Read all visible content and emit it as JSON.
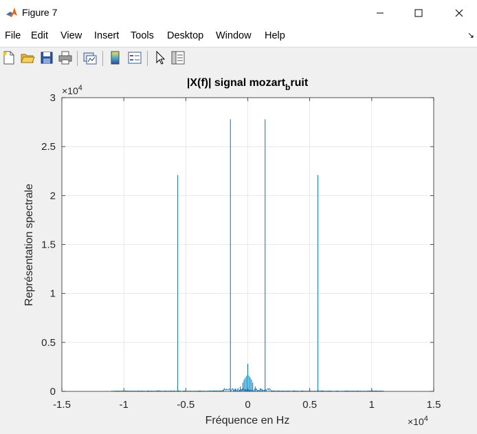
{
  "window": {
    "title": "Figure 7",
    "controls": {
      "minimize": "minimize",
      "maximize": "maximize",
      "close": "close"
    }
  },
  "menu": {
    "items": [
      "File",
      "Edit",
      "View",
      "Insert",
      "Tools",
      "Desktop",
      "Window",
      "Help"
    ]
  },
  "toolbar": {
    "icons": [
      "new-figure-icon",
      "open-file-icon",
      "save-icon",
      "print-icon",
      "link-plot-icon",
      "colorbar-icon",
      "legend-icon",
      "pointer-icon",
      "property-inspector-icon"
    ]
  },
  "chart_data": {
    "type": "line",
    "title_main": "|X(f)| signal mozart",
    "title_sub": "b",
    "title_tail": "ruit",
    "xlabel": "Fréquence en Hz",
    "ylabel": "Représentation spectrale",
    "x_exponent_label": "×10",
    "x_exponent_power": "4",
    "y_exponent_label": "×10",
    "y_exponent_power": "4",
    "xlim": [
      -1.5,
      1.5
    ],
    "ylim": [
      0,
      3
    ],
    "xticks": [
      -1.5,
      -1,
      -0.5,
      0,
      0.5,
      1,
      1.5
    ],
    "xtick_labels": [
      "-1.5",
      "-1",
      "-0.5",
      "0",
      "0.5",
      "1",
      "1.5"
    ],
    "yticks": [
      0,
      0.5,
      1,
      1.5,
      2,
      2.5,
      3
    ],
    "ytick_labels": [
      "0",
      "0.5",
      "1",
      "1.5",
      "2",
      "2.5",
      "3"
    ],
    "grid": true,
    "line_color": "#0072bd",
    "peaks": [
      {
        "x": -0.565,
        "y": 2.21
      },
      {
        "x": -0.14,
        "y": 2.78
      },
      {
        "x": 0.14,
        "y": 2.78
      },
      {
        "x": 0.565,
        "y": 2.21
      }
    ],
    "center_cluster": [
      {
        "x": -0.06,
        "y": 0.05
      },
      {
        "x": -0.04,
        "y": 0.09
      },
      {
        "x": -0.03,
        "y": 0.12
      },
      {
        "x": -0.02,
        "y": 0.14
      },
      {
        "x": -0.01,
        "y": 0.16
      },
      {
        "x": 0.0,
        "y": 0.28
      },
      {
        "x": 0.01,
        "y": 0.16
      },
      {
        "x": 0.02,
        "y": 0.14
      },
      {
        "x": 0.03,
        "y": 0.12
      },
      {
        "x": 0.04,
        "y": 0.09
      },
      {
        "x": 0.06,
        "y": 0.05
      },
      {
        "x": -0.1,
        "y": 0.03
      },
      {
        "x": 0.1,
        "y": 0.03
      }
    ],
    "noise_floor_range": [
      -1.1,
      1.1
    ]
  }
}
